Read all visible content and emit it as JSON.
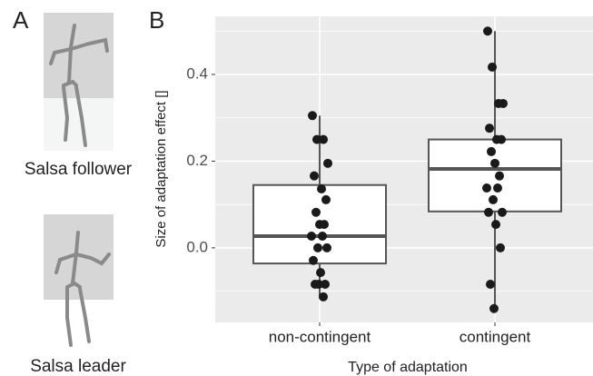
{
  "panel_labels": [
    "A",
    "B"
  ],
  "figure_captions": [
    "Salsa follower",
    "Salsa leader"
  ],
  "chart_data": {
    "type": "box",
    "x_label": "Type of adaptation",
    "y_label": "Size of adaptation effect []",
    "categories": [
      "non-contingent",
      "contingent"
    ],
    "boxes": [
      {
        "min": -0.11,
        "q1": -0.036,
        "median": 0.027,
        "q3": 0.145,
        "max": 0.305,
        "points": [
          0.305,
          0.25,
          0.25,
          0.195,
          0.166,
          0.136,
          0.111,
          0.082,
          0.054,
          0.054,
          0.027,
          0.027,
          0.0,
          0.0,
          -0.029,
          -0.057,
          -0.084,
          -0.084,
          -0.084,
          -0.113
        ]
      },
      {
        "min": -0.14,
        "q1": 0.084,
        "median": 0.182,
        "q3": 0.25,
        "max": 0.5,
        "points": [
          0.5,
          0.417,
          0.333,
          0.333,
          0.276,
          0.25,
          0.25,
          0.222,
          0.195,
          0.166,
          0.138,
          0.138,
          0.111,
          0.082,
          0.082,
          0.054,
          0.0,
          -0.084,
          -0.14
        ]
      }
    ],
    "ylim": [
      -0.172,
      0.534
    ],
    "yticks": [
      {
        "value": 0,
        "label": "0.0"
      },
      {
        "value": 0.2,
        "label": "0.2"
      },
      {
        "value": 0.4,
        "label": "0.4"
      }
    ],
    "minor_grid": [
      -0.1,
      0.1,
      0.3,
      0.5
    ],
    "grid": true,
    "background": "#ebebeb",
    "box_fill": "#ffffff",
    "box_stroke": "#555555",
    "point_color": "#1a1a1a"
  }
}
